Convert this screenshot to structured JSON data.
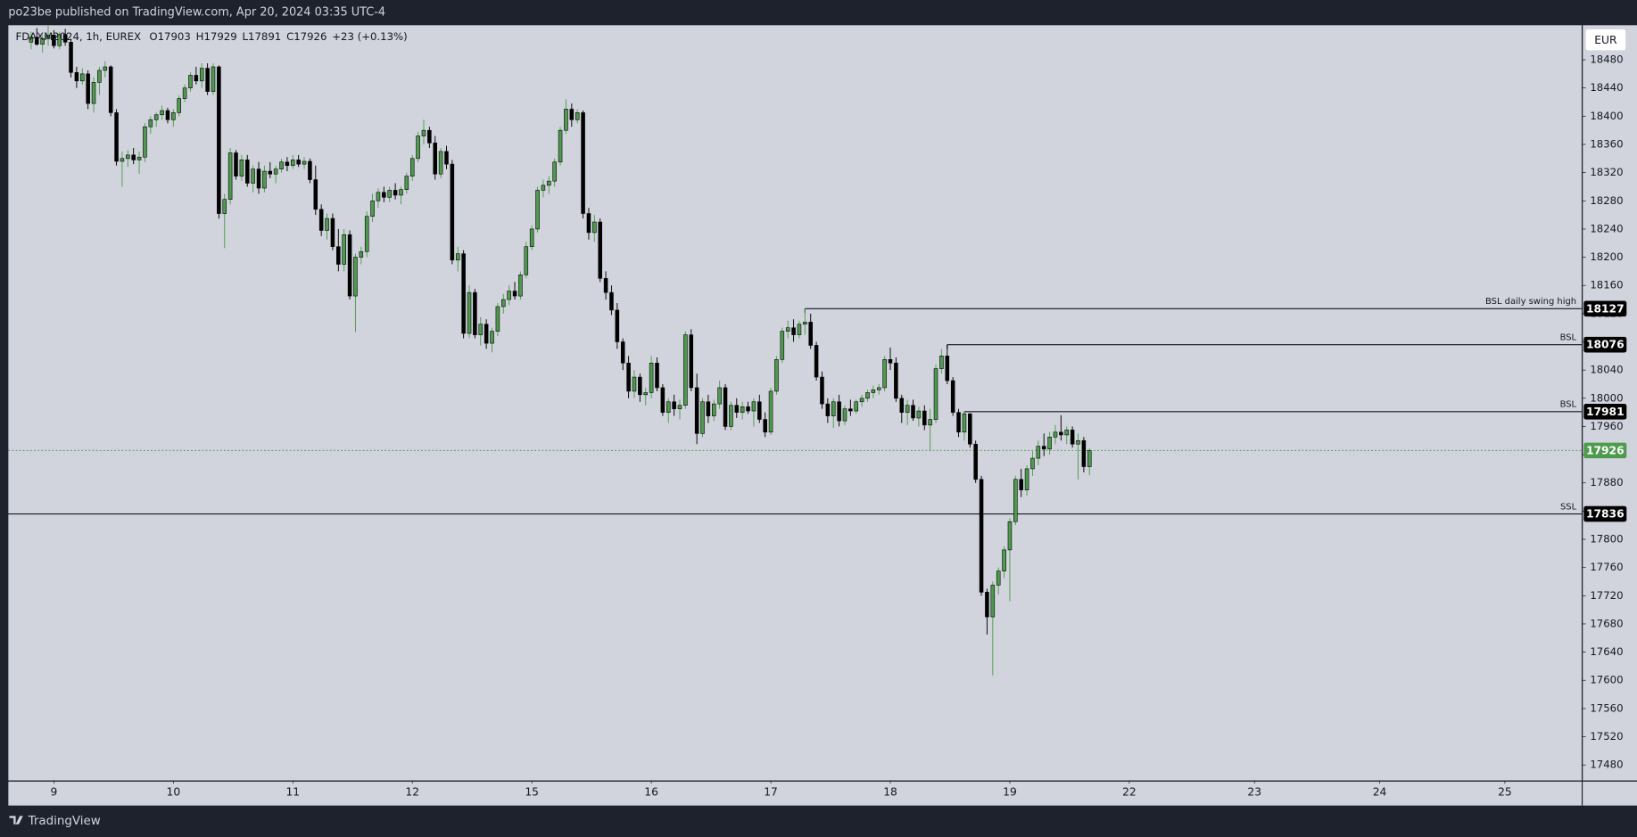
{
  "header": {
    "text": "po23be published on TradingView.com, Apr 20, 2024 03:35 UTC-4"
  },
  "footer": {
    "brand": "TradingView"
  },
  "chart_data": {
    "type": "candlestick",
    "symbol": "FDAXM2024, 1h, EUREX",
    "ohlc_letters": [
      "O",
      "H",
      "L",
      "C"
    ],
    "change_text": "+23 (+0.13%)",
    "currency": "EUR",
    "up_color": "#4e9a4e",
    "down_color": "#000000",
    "background": "#d1d4dc",
    "ylim": [
      17458,
      18529
    ],
    "yticks": [
      17480,
      17520,
      17560,
      17600,
      17640,
      17680,
      17720,
      17760,
      17800,
      17840,
      17880,
      17920,
      17960,
      18000,
      18040,
      18080,
      18120,
      18160,
      18200,
      18240,
      18280,
      18320,
      18360,
      18400,
      18440,
      18480
    ],
    "xlim": [
      -4,
      272.5
    ],
    "xticks": [
      {
        "value": 4,
        "label": "9"
      },
      {
        "value": 25,
        "label": "10"
      },
      {
        "value": 46,
        "label": "11"
      },
      {
        "value": 67,
        "label": "12"
      },
      {
        "value": 88,
        "label": "15"
      },
      {
        "value": 109,
        "label": "16"
      },
      {
        "value": 130,
        "label": "17"
      },
      {
        "value": 151,
        "label": "18"
      },
      {
        "value": 172,
        "label": "19"
      },
      {
        "value": 193,
        "label": "22"
      },
      {
        "value": 215,
        "label": "23"
      },
      {
        "value": 237,
        "label": "24"
      },
      {
        "value": 259,
        "label": "25"
      }
    ],
    "levels": [
      {
        "label": "BSL daily swing high",
        "value": 18127
      },
      {
        "label": "BSL",
        "value": 18076
      },
      {
        "label": "BSL",
        "value": 17981
      },
      {
        "label": "SSL",
        "value": 17836
      }
    ],
    "ohlc": [
      [
        18505,
        18520,
        18495,
        18512
      ],
      [
        18512,
        18525,
        18500,
        18502
      ],
      [
        18502,
        18515,
        18490,
        18510
      ],
      [
        18510,
        18528,
        18500,
        18515
      ],
      [
        18515,
        18522,
        18496,
        18500
      ],
      [
        18500,
        18520,
        18495,
        18516
      ],
      [
        18516,
        18524,
        18500,
        18505
      ],
      [
        18505,
        18510,
        18455,
        18462
      ],
      [
        18462,
        18470,
        18440,
        18450
      ],
      [
        18450,
        18468,
        18445,
        18460
      ],
      [
        18460,
        18465,
        18410,
        18418
      ],
      [
        18418,
        18455,
        18405,
        18448
      ],
      [
        18448,
        18470,
        18430,
        18465
      ],
      [
        18465,
        18478,
        18455,
        18470
      ],
      [
        18470,
        18472,
        18400,
        18405
      ],
      [
        18405,
        18410,
        18330,
        18336
      ],
      [
        18336,
        18350,
        18300,
        18340
      ],
      [
        18340,
        18352,
        18328,
        18345
      ],
      [
        18345,
        18355,
        18332,
        18338
      ],
      [
        18338,
        18350,
        18318,
        18342
      ],
      [
        18342,
        18390,
        18335,
        18385
      ],
      [
        18385,
        18400,
        18375,
        18395
      ],
      [
        18395,
        18405,
        18385,
        18402
      ],
      [
        18402,
        18415,
        18395,
        18408
      ],
      [
        18408,
        18412,
        18390,
        18395
      ],
      [
        18395,
        18410,
        18385,
        18405
      ],
      [
        18405,
        18430,
        18400,
        18425
      ],
      [
        18425,
        18445,
        18420,
        18440
      ],
      [
        18440,
        18462,
        18435,
        18458
      ],
      [
        18458,
        18470,
        18445,
        18450
      ],
      [
        18450,
        18475,
        18440,
        18468
      ],
      [
        18468,
        18475,
        18430,
        18435
      ],
      [
        18435,
        18475,
        18430,
        18470
      ],
      [
        18470,
        18472,
        18255,
        18262
      ],
      [
        18262,
        18290,
        18213,
        18282
      ],
      [
        18282,
        18355,
        18275,
        18348
      ],
      [
        18348,
        18352,
        18310,
        18315
      ],
      [
        18315,
        18345,
        18308,
        18338
      ],
      [
        18338,
        18345,
        18300,
        18305
      ],
      [
        18305,
        18330,
        18292,
        18325
      ],
      [
        18325,
        18335,
        18290,
        18298
      ],
      [
        18298,
        18330,
        18292,
        18322
      ],
      [
        18322,
        18335,
        18312,
        18318
      ],
      [
        18318,
        18330,
        18305,
        18325
      ],
      [
        18325,
        18340,
        18320,
        18335
      ],
      [
        18335,
        18342,
        18322,
        18330
      ],
      [
        18330,
        18345,
        18325,
        18338
      ],
      [
        18338,
        18345,
        18328,
        18332
      ],
      [
        18332,
        18342,
        18325,
        18336
      ],
      [
        18336,
        18340,
        18305,
        18310
      ],
      [
        18310,
        18330,
        18260,
        18268
      ],
      [
        18268,
        18275,
        18230,
        18238
      ],
      [
        18238,
        18262,
        18225,
        18255
      ],
      [
        18255,
        18262,
        18210,
        18215
      ],
      [
        18215,
        18240,
        18180,
        18190
      ],
      [
        18190,
        18240,
        18180,
        18232
      ],
      [
        18232,
        18238,
        18140,
        18145
      ],
      [
        18145,
        18205,
        18094,
        18200
      ],
      [
        18200,
        18215,
        18190,
        18208
      ],
      [
        18208,
        18265,
        18200,
        18258
      ],
      [
        18258,
        18290,
        18250,
        18280
      ],
      [
        18280,
        18298,
        18270,
        18292
      ],
      [
        18292,
        18300,
        18278,
        18285
      ],
      [
        18285,
        18300,
        18278,
        18295
      ],
      [
        18295,
        18305,
        18282,
        18288
      ],
      [
        18288,
        18300,
        18275,
        18296
      ],
      [
        18296,
        18320,
        18290,
        18315
      ],
      [
        18315,
        18345,
        18308,
        18340
      ],
      [
        18340,
        18378,
        18335,
        18372
      ],
      [
        18372,
        18395,
        18360,
        18380
      ],
      [
        18380,
        18385,
        18355,
        18362
      ],
      [
        18362,
        18372,
        18310,
        18318
      ],
      [
        18318,
        18355,
        18312,
        18350
      ],
      [
        18350,
        18358,
        18325,
        18332
      ],
      [
        18332,
        18338,
        18190,
        18196
      ],
      [
        18196,
        18215,
        18180,
        18205
      ],
      [
        18205,
        18210,
        18085,
        18092
      ],
      [
        18092,
        18160,
        18085,
        18150
      ],
      [
        18150,
        18155,
        18085,
        18090
      ],
      [
        18090,
        18115,
        18075,
        18105
      ],
      [
        18105,
        18112,
        18070,
        18078
      ],
      [
        18078,
        18100,
        18065,
        18095
      ],
      [
        18095,
        18135,
        18088,
        18130
      ],
      [
        18130,
        18148,
        18120,
        18140
      ],
      [
        18140,
        18160,
        18132,
        18152
      ],
      [
        18152,
        18165,
        18140,
        18145
      ],
      [
        18145,
        18180,
        18140,
        18175
      ],
      [
        18175,
        18222,
        18170,
        18215
      ],
      [
        18215,
        18245,
        18210,
        18240
      ],
      [
        18240,
        18300,
        18235,
        18295
      ],
      [
        18295,
        18310,
        18285,
        18302
      ],
      [
        18302,
        18315,
        18290,
        18308
      ],
      [
        18308,
        18340,
        18300,
        18335
      ],
      [
        18335,
        18385,
        18330,
        18380
      ],
      [
        18380,
        18424,
        18375,
        18410
      ],
      [
        18410,
        18418,
        18385,
        18395
      ],
      [
        18395,
        18410,
        18390,
        18405
      ],
      [
        18405,
        18408,
        18255,
        18262
      ],
      [
        18262,
        18270,
        18225,
        18235
      ],
      [
        18235,
        18260,
        18222,
        18250
      ],
      [
        18250,
        18255,
        18165,
        18170
      ],
      [
        18170,
        18180,
        18140,
        18150
      ],
      [
        18150,
        18160,
        18118,
        18125
      ],
      [
        18125,
        18135,
        18070,
        18080
      ],
      [
        18080,
        18085,
        18040,
        18050
      ],
      [
        18050,
        18060,
        18000,
        18010
      ],
      [
        18010,
        18040,
        18000,
        18030
      ],
      [
        18030,
        18035,
        17995,
        18005
      ],
      [
        18005,
        18015,
        17990,
        18008
      ],
      [
        18008,
        18060,
        18000,
        18050
      ],
      [
        18050,
        18058,
        18010,
        18015
      ],
      [
        18015,
        18020,
        17975,
        17980
      ],
      [
        17980,
        18000,
        17965,
        17995
      ],
      [
        17995,
        18005,
        17975,
        17985
      ],
      [
        17985,
        17998,
        17970,
        17990
      ],
      [
        17990,
        18095,
        17985,
        18090
      ],
      [
        18090,
        18098,
        18010,
        18015
      ],
      [
        18015,
        18035,
        17935,
        17950
      ],
      [
        17950,
        18000,
        17945,
        17995
      ],
      [
        17995,
        18005,
        17965,
        17975
      ],
      [
        17975,
        17998,
        17968,
        17992
      ],
      [
        17992,
        18025,
        17985,
        18015
      ],
      [
        18015,
        18020,
        17955,
        17960
      ],
      [
        17960,
        17995,
        17955,
        17990
      ],
      [
        17990,
        18000,
        17972,
        17980
      ],
      [
        17980,
        17995,
        17970,
        17988
      ],
      [
        17988,
        17995,
        17978,
        17982
      ],
      [
        17982,
        18000,
        17960,
        17995
      ],
      [
        17995,
        18005,
        17965,
        17970
      ],
      [
        17970,
        17980,
        17945,
        17952
      ],
      [
        17952,
        18015,
        17948,
        18010
      ],
      [
        18010,
        18060,
        18005,
        18055
      ],
      [
        18055,
        18100,
        18050,
        18095
      ],
      [
        18095,
        18110,
        18085,
        18100
      ],
      [
        18100,
        18112,
        18080,
        18090
      ],
      [
        18090,
        18110,
        18085,
        18105
      ],
      [
        18105,
        18127,
        18090,
        18108
      ],
      [
        18108,
        18120,
        18070,
        18075
      ],
      [
        18075,
        18080,
        18025,
        18030
      ],
      [
        18030,
        18038,
        17985,
        17992
      ],
      [
        17992,
        18000,
        17965,
        17975
      ],
      [
        17975,
        18000,
        17958,
        17995
      ],
      [
        17995,
        18005,
        17960,
        17968
      ],
      [
        17968,
        17990,
        17962,
        17985
      ],
      [
        17985,
        17998,
        17975,
        17982
      ],
      [
        17982,
        17998,
        17978,
        17995
      ],
      [
        17995,
        18005,
        17988,
        18000
      ],
      [
        18000,
        18012,
        17995,
        18008
      ],
      [
        18008,
        18018,
        18000,
        18012
      ],
      [
        18012,
        18020,
        18005,
        18015
      ],
      [
        18015,
        18060,
        18010,
        18055
      ],
      [
        18055,
        18072,
        18040,
        18050
      ],
      [
        18050,
        18058,
        17995,
        18000
      ],
      [
        18000,
        18005,
        17965,
        17980
      ],
      [
        17980,
        17998,
        17962,
        17990
      ],
      [
        17990,
        17998,
        17968,
        17972
      ],
      [
        17972,
        17988,
        17960,
        17982
      ],
      [
        17982,
        17990,
        17955,
        17962
      ],
      [
        17962,
        17985,
        17925,
        17970
      ],
      [
        17970,
        18048,
        17965,
        18042
      ],
      [
        18042,
        18070,
        18035,
        18060
      ],
      [
        18060,
        18076,
        18020,
        18025
      ],
      [
        18025,
        18030,
        17975,
        17980
      ],
      [
        17980,
        17985,
        17945,
        17952
      ],
      [
        17952,
        17981,
        17940,
        17978
      ],
      [
        17978,
        17979,
        17930,
        17935
      ],
      [
        17935,
        17940,
        17880,
        17885
      ],
      [
        17885,
        17890,
        17720,
        17725
      ],
      [
        17725,
        17730,
        17665,
        17690
      ],
      [
        17690,
        17740,
        17607,
        17735
      ],
      [
        17735,
        17760,
        17722,
        17755
      ],
      [
        17755,
        17790,
        17745,
        17785
      ],
      [
        17785,
        17830,
        17712,
        17825
      ],
      [
        17825,
        17890,
        17820,
        17885
      ],
      [
        17885,
        17900,
        17860,
        17870
      ],
      [
        17870,
        17905,
        17862,
        17900
      ],
      [
        17900,
        17925,
        17890,
        17915
      ],
      [
        17915,
        17940,
        17905,
        17932
      ],
      [
        17932,
        17950,
        17918,
        17928
      ],
      [
        17928,
        17952,
        17920,
        17945
      ],
      [
        17945,
        17962,
        17935,
        17952
      ],
      [
        17952,
        17976,
        17940,
        17948
      ],
      [
        17948,
        17960,
        17935,
        17955
      ],
      [
        17955,
        17960,
        17930,
        17935
      ],
      [
        17935,
        17950,
        17885,
        17940
      ],
      [
        17940,
        17945,
        17895,
        17903
      ],
      [
        17903,
        17929,
        17891,
        17926
      ]
    ]
  }
}
